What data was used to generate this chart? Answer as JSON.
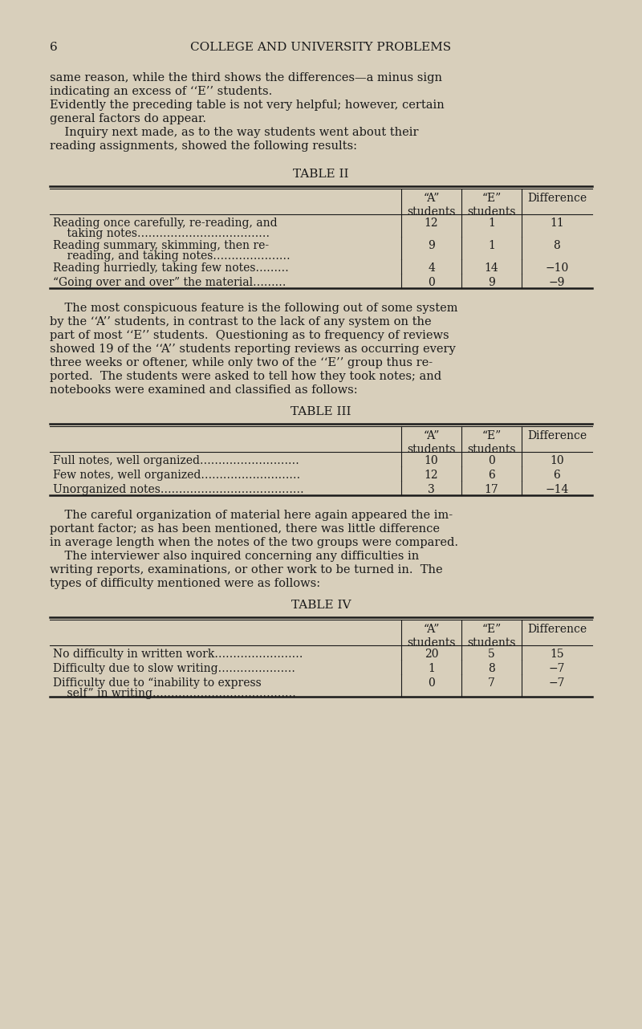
{
  "bg_color": "#d8cfbb",
  "page_num": "6",
  "header": "COLLEGE AND UNIVERSITY PROBLEMS",
  "intro_text": [
    "same reason, while the third shows the differences—a minus sign",
    "indicating an excess of ‘‘E’’ students.",
    "Evidently the preceding table is not very helpful; however, certain",
    "general factors do appear.",
    "    Inquiry next made, as to the way students went about their",
    "reading assignments, showed the following results:"
  ],
  "table2_title": "TABLE II",
  "table2_col_headers": [
    "“A”\nstudents",
    "“E”\nstudents",
    "Difference"
  ],
  "table2_rows": [
    [
      "Reading once carefully, re-reading, and\n    taking notes………………………………",
      "12",
      "1",
      "11"
    ],
    [
      "Reading summary, skimming, then re-\n    reading, and taking notes…………………",
      "9",
      "1",
      "8"
    ],
    [
      "Reading hurriedly, taking few notes………",
      "4",
      "14",
      "−10"
    ],
    [
      "“Going over and over” the material………",
      "0",
      "9",
      "−9"
    ]
  ],
  "middle_text": [
    "    The most conspicuous feature is the following out of some system",
    "by the ‘‘A’’ students, in contrast to the lack of any system on the",
    "part of most ‘‘E’’ students.  Questioning as to frequency of reviews",
    "showed 19 of the ‘‘A’’ students reporting reviews as occurring every",
    "three weeks or oftener, while only two of the ‘‘E’’ group thus re-",
    "ported.  The students were asked to tell how they took notes; and",
    "notebooks were examined and classified as follows:"
  ],
  "table3_title": "TABLE III",
  "table3_col_headers": [
    "“A”\nstudents",
    "“E”\nstudents",
    "Difference"
  ],
  "table3_rows": [
    [
      "Full notes, well organized………………………",
      "10",
      "0",
      "10"
    ],
    [
      "Few notes, well organized………………………",
      "12",
      "6",
      "6"
    ],
    [
      "Unorganized notes…………………………………",
      "3",
      "17",
      "−14"
    ]
  ],
  "lower_text": [
    "    The careful organization of material here again appeared the im-",
    "portant factor; as has been mentioned, there was little difference",
    "in average length when the notes of the two groups were compared.",
    "    The interviewer also inquired concerning any difficulties in",
    "writing reports, examinations, or other work to be turned in.  The",
    "types of difficulty mentioned were as follows:"
  ],
  "table4_title": "TABLE IV",
  "table4_col_headers": [
    "“A”\nstudents",
    "“E”\nstudents",
    "Difference"
  ],
  "table4_rows": [
    [
      "No difficulty in written work……………………",
      "20",
      "5",
      "15"
    ],
    [
      "Difficulty due to slow writing…………………",
      "1",
      "8",
      "−7"
    ],
    [
      "Difficulty due to “inability to express\n    self” in writing…………………………………",
      "0",
      "7",
      "−7"
    ]
  ]
}
